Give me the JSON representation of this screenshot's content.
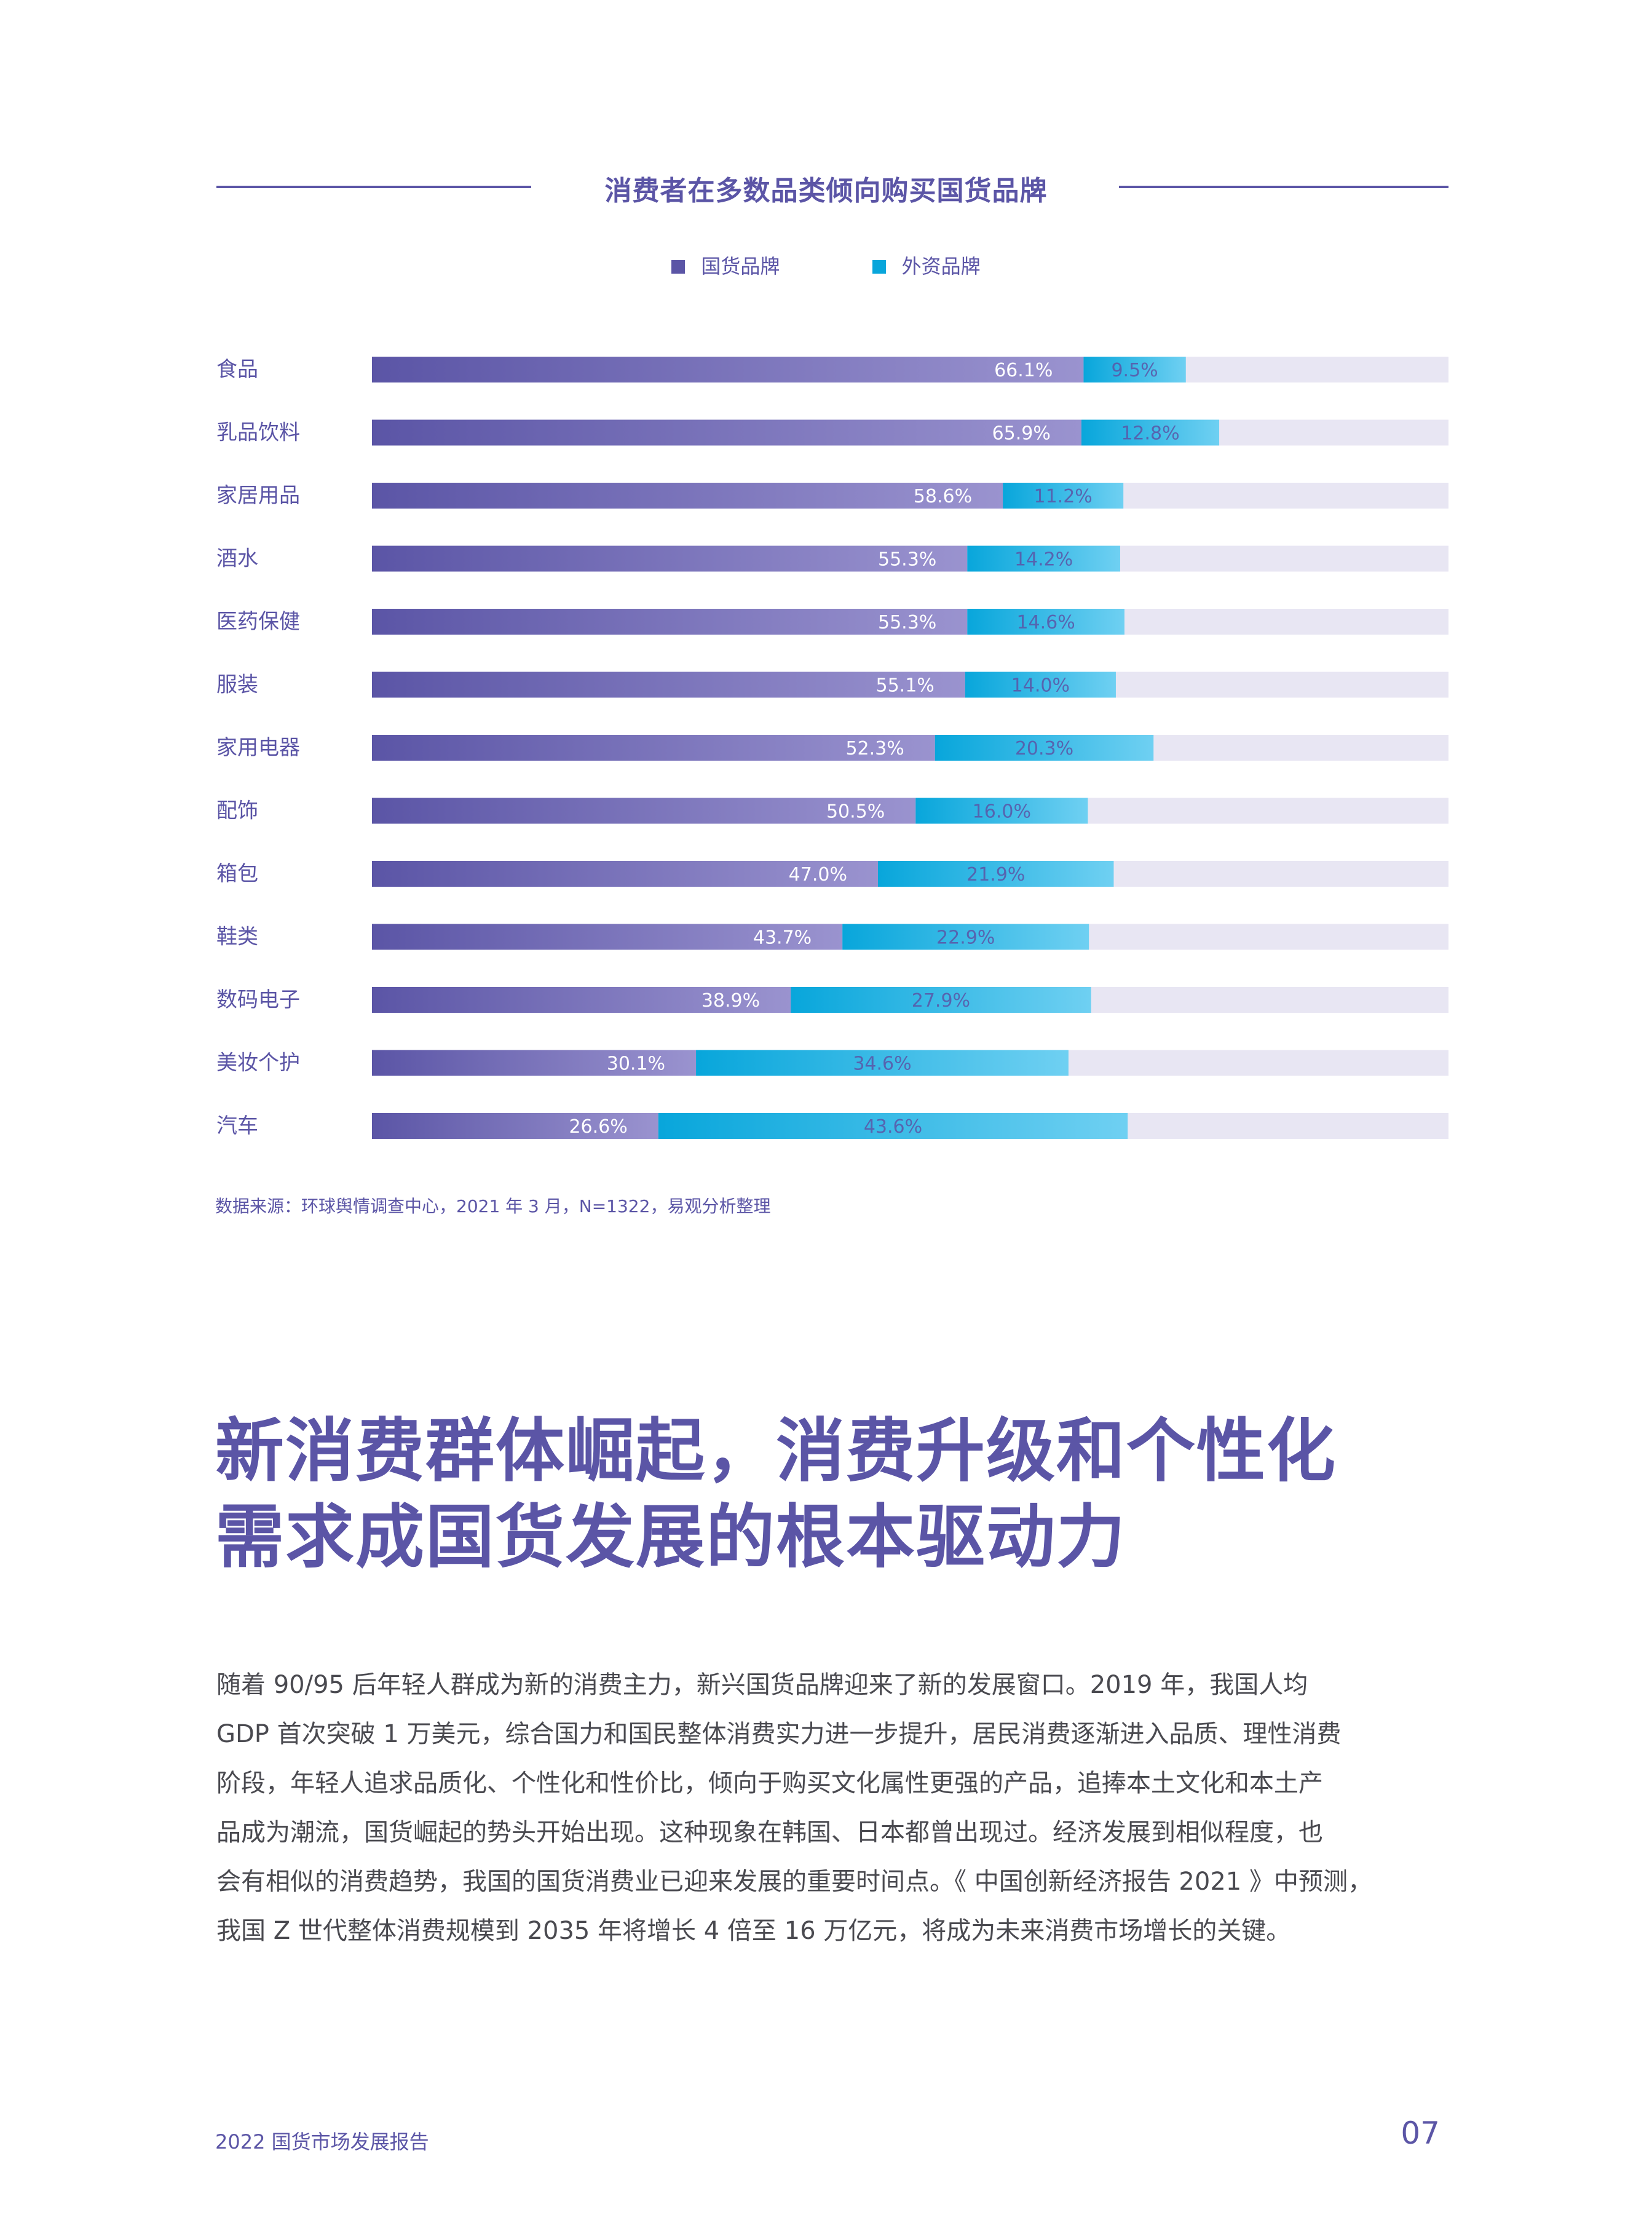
{
  "colors": {
    "domestic": "#5b55a6",
    "domestic_light": "#9a93cf",
    "foreign": "#08a6db",
    "foreign_light": "#6fd0f2",
    "track": "#e8e6f3",
    "text_purple": "#5b55a6"
  },
  "chart_data": {
    "type": "bar",
    "orientation": "horizontal",
    "stacked": true,
    "title": "消费者在多数品类倾向购买国货品牌",
    "categories": [
      "食品",
      "乳品饮料",
      "家居用品",
      "酒水",
      "医药保健",
      "服装",
      "家用电器",
      "配饰",
      "箱包",
      "鞋类",
      "数码电子",
      "美妆个护",
      "汽车"
    ],
    "series": [
      {
        "name": "国货品牌",
        "values": [
          66.1,
          65.9,
          58.6,
          55.3,
          55.3,
          55.1,
          52.3,
          50.5,
          47.0,
          43.7,
          38.9,
          30.1,
          26.6
        ],
        "labels": [
          "66.1%",
          "65.9%",
          "58.6%",
          "55.3%",
          "55.3%",
          "55.1%",
          "52.3%",
          "50.5%",
          "47.0%",
          "43.7%",
          "38.9%",
          "30.1%",
          "26.6%"
        ]
      },
      {
        "name": "外资品牌",
        "values": [
          9.5,
          12.8,
          11.2,
          14.2,
          14.6,
          14.0,
          20.3,
          16.0,
          21.9,
          22.9,
          27.9,
          34.6,
          43.6
        ],
        "labels": [
          "9.5%",
          "12.8%",
          "11.2%",
          "14.2%",
          "14.6%",
          "14.0%",
          "20.3%",
          "16.0%",
          "21.9%",
          "22.9%",
          "27.9%",
          "34.6%",
          "43.6%"
        ]
      }
    ],
    "xlim": [
      0,
      100
    ],
    "legend": "top-center",
    "grid": false
  },
  "source": "数据来源：环球舆情调查中心，2021 年 3 月，N=1322，易观分析整理",
  "heading": {
    "line1": "新消费群体崛起，消费升级和个性化",
    "line2": "需求成国货发展的根本驱动力"
  },
  "body_lines": [
    "随着 90/95 后年轻人群成为新的消费主力，新兴国货品牌迎来了新的发展窗口。2019 年，我国人均",
    "GDP 首次突破 1 万美元，综合国力和国民整体消费实力进一步提升，居民消费逐渐进入品质、理性消费",
    "阶段，年轻人追求品质化、个性化和性价比，倾向于购买文化属性更强的产品，追捧本土文化和本土产",
    "品成为潮流，国货崛起的势头开始出现。这种现象在韩国、日本都曾出现过。经济发展到相似程度，也",
    "会有相似的消费趋势，我国的国货消费业已迎来发展的重要时间点。《 中国创新经济报告 2021 》中预测，",
    "我国 Z 世代整体消费规模到 2035 年将增长 4 倍至 16 万亿元，将成为未来消费市场增长的关键。"
  ],
  "footer": {
    "title": "2022 国货市场发展报告",
    "page": "07"
  }
}
